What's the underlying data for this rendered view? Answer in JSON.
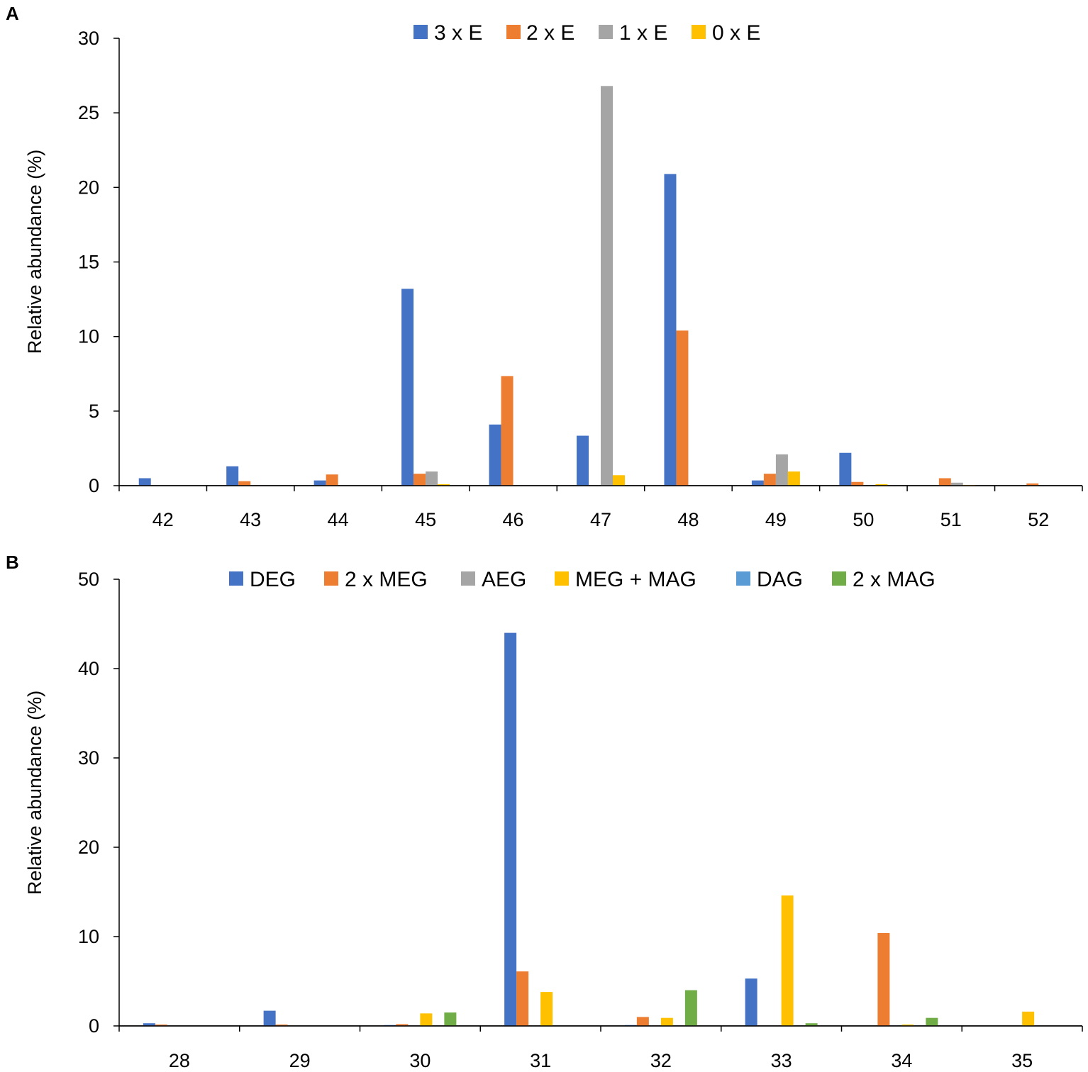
{
  "chart_data": [
    {
      "type": "bar",
      "panel": "A",
      "title": "",
      "xlabel": "",
      "ylabel": "Relative abundance (%)",
      "ylim": [
        0,
        30
      ],
      "yticks": [
        0,
        5,
        10,
        15,
        20,
        25,
        30
      ],
      "grid": false,
      "legend_position": "top",
      "categories": [
        "42",
        "43",
        "44",
        "45",
        "46",
        "47",
        "48",
        "49",
        "50",
        "51",
        "52"
      ],
      "series": [
        {
          "name": "3 x E",
          "color": "#4472C4",
          "values": [
            0.5,
            1.3,
            0.35,
            13.2,
            4.1,
            3.35,
            20.9,
            0.35,
            2.2,
            0,
            0
          ]
        },
        {
          "name": "2 x E",
          "color": "#ED7D31",
          "values": [
            0,
            0.3,
            0.75,
            0.8,
            7.35,
            0,
            10.4,
            0.8,
            0.25,
            0.5,
            0.15
          ]
        },
        {
          "name": "1 x E",
          "color": "#A5A5A5",
          "values": [
            0,
            0,
            0,
            0.95,
            0,
            26.8,
            0,
            2.1,
            0,
            0.2,
            0
          ]
        },
        {
          "name": "0 x E",
          "color": "#FFC000",
          "values": [
            0,
            0,
            0,
            0.1,
            0,
            0.7,
            0,
            0.95,
            0.1,
            0.05,
            0
          ]
        }
      ]
    },
    {
      "type": "bar",
      "panel": "B",
      "title": "",
      "xlabel": "",
      "ylabel": "Relative abundance (%)",
      "ylim": [
        0,
        50
      ],
      "yticks": [
        0,
        10,
        20,
        30,
        40,
        50
      ],
      "grid": false,
      "legend_position": "top",
      "categories": [
        "28",
        "29",
        "30",
        "31",
        "32",
        "33",
        "34",
        "35"
      ],
      "series": [
        {
          "name": "DEG",
          "color": "#4472C4",
          "values": [
            0.3,
            1.7,
            0.1,
            44.0,
            0.1,
            5.3,
            0,
            0
          ]
        },
        {
          "name": "2 x MEG",
          "color": "#ED7D31",
          "values": [
            0.15,
            0.15,
            0.2,
            6.1,
            1.0,
            0,
            10.4,
            0
          ]
        },
        {
          "name": "AEG",
          "color": "#A5A5A5",
          "values": [
            0,
            0,
            0,
            0,
            0,
            0,
            0,
            0
          ]
        },
        {
          "name": "MEG + MAG",
          "color": "#FFC000",
          "values": [
            0,
            0,
            1.4,
            3.8,
            0.9,
            14.6,
            0.15,
            1.6
          ]
        },
        {
          "name": "DAG",
          "color": "#5B9BD5",
          "values": [
            0,
            0,
            0,
            0,
            0,
            0,
            0,
            0
          ]
        },
        {
          "name": "2 x MAG",
          "color": "#70AD47",
          "values": [
            0,
            0,
            1.5,
            0,
            4.0,
            0.3,
            0.9,
            0
          ]
        }
      ]
    }
  ]
}
